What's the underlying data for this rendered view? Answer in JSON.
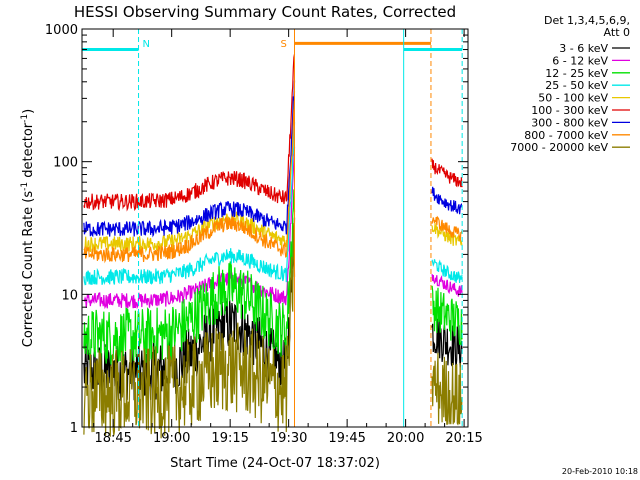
{
  "chart_data": {
    "type": "line",
    "title": "HESSI Observing Summary Count Rates, Corrected",
    "xlabel": "Start Time (24-Oct-07 18:37:02)",
    "ylabel": "Corrected Count Rate (s",
    "ylabel_sup": "-1",
    "ylabel_mid": " detector",
    "ylabel_sup2": "-1",
    "ylabel_end": ")",
    "yscale": "log",
    "ylim": [
      1,
      1000
    ],
    "xlim_min": [
      0,
      99
    ],
    "x_ticks": [
      {
        "m": 8,
        "label": "18:45"
      },
      {
        "m": 23,
        "label": "19:00"
      },
      {
        "m": 38,
        "label": "19:15"
      },
      {
        "m": 53,
        "label": "19:30"
      },
      {
        "m": 68,
        "label": "19:45"
      },
      {
        "m": 83,
        "label": "20:00"
      },
      {
        "m": 98,
        "label": "20:15"
      }
    ],
    "y_ticks": [
      {
        "v": 1,
        "label": "1"
      },
      {
        "v": 10,
        "label": "10"
      },
      {
        "v": 100,
        "label": "100"
      },
      {
        "v": 1000,
        "label": "1000"
      }
    ],
    "legend_header": [
      "Det 1,3,4,5,6,9,",
      "Att 0"
    ],
    "series": [
      {
        "name": "3 - 6 keV",
        "color": "#000000",
        "base": 2.6,
        "peak": 6.0,
        "post": 4.5
      },
      {
        "name": "6 - 12 keV",
        "color": "#e000e0",
        "base": 9.0,
        "peak": 13.0,
        "post": 12.0
      },
      {
        "name": "12 - 25 keV",
        "color": "#00e000",
        "base": 4.8,
        "peak": 11.0,
        "post": 7.0
      },
      {
        "name": "25 - 50 keV",
        "color": "#00e8e8",
        "base": 13.5,
        "peak": 19.5,
        "post": 15.0
      },
      {
        "name": "50 - 100 keV",
        "color": "#e8c800",
        "base": 24.0,
        "peak": 37.0,
        "post": 28.0
      },
      {
        "name": "100 - 300 keV",
        "color": "#e00000",
        "base": 50.0,
        "peak": 75.0,
        "post": 80.0
      },
      {
        "name": "300 - 800 keV",
        "color": "#0000e0",
        "base": 31.0,
        "peak": 44.0,
        "post": 50.0
      },
      {
        "name": "800 - 7000 keV",
        "color": "#ff8800",
        "base": 20.0,
        "peak": 34.0,
        "post": 32.0
      },
      {
        "name": "7000 - 20000 keV",
        "color": "#8b7d00",
        "base": 1.8,
        "peak": 2.8,
        "post": 1.8
      }
    ],
    "markers": [
      {
        "kind": "N",
        "label": "N",
        "color": "#00e8e8",
        "start_min": 0,
        "end_min": 14.5,
        "level": 700
      },
      {
        "kind": "S",
        "label": "S",
        "color": "#ff8800",
        "start_min": 54.5,
        "end_min": 89.5,
        "level": 780
      },
      {
        "kind": "N2",
        "label": "",
        "color": "#00e8e8",
        "start_min": 82.5,
        "end_min": 97.5,
        "level": 700
      }
    ],
    "grid": false
  },
  "footer_date": "20-Feb-2010 10:18"
}
